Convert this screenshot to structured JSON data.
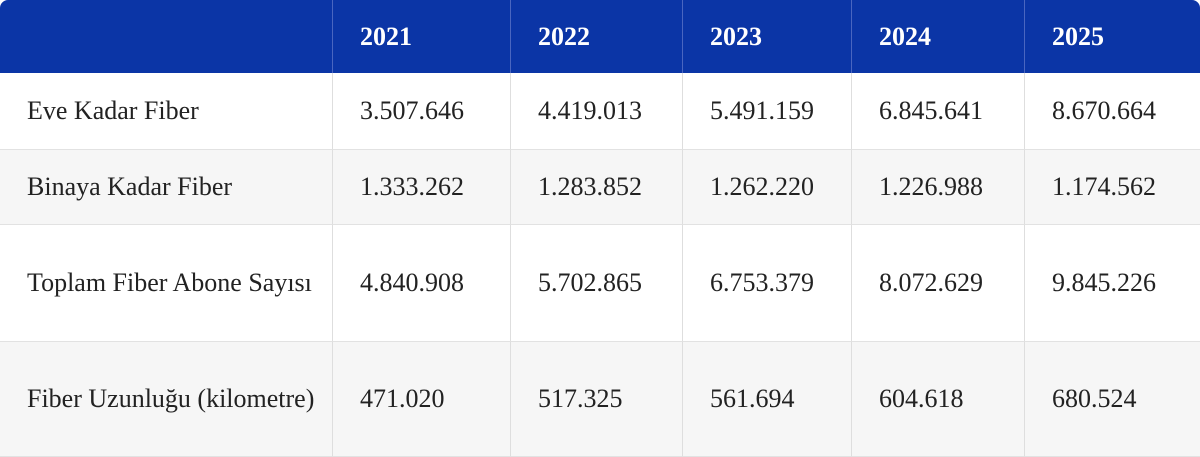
{
  "table": {
    "header": [
      "2021",
      "2022",
      "2023",
      "2024",
      "2025"
    ],
    "rows": [
      {
        "label": "Eve Kadar Fiber",
        "values": [
          "3.507.646",
          "4.419.013",
          "5.491.159",
          "6.845.641",
          "8.670.664"
        ]
      },
      {
        "label": "Binaya Kadar Fiber",
        "values": [
          "1.333.262",
          "1.283.852",
          "1.262.220",
          "1.226.988",
          "1.174.562"
        ]
      },
      {
        "label": "Toplam Fiber Abone Sayısı",
        "values": [
          "4.840.908",
          "5.702.865",
          "6.753.379",
          "8.072.629",
          "9.845.226"
        ]
      },
      {
        "label": "Fiber Uzunluğu (kilometre)",
        "values": [
          "471.020",
          "517.325",
          "561.694",
          "604.618",
          "680.524"
        ]
      }
    ]
  }
}
